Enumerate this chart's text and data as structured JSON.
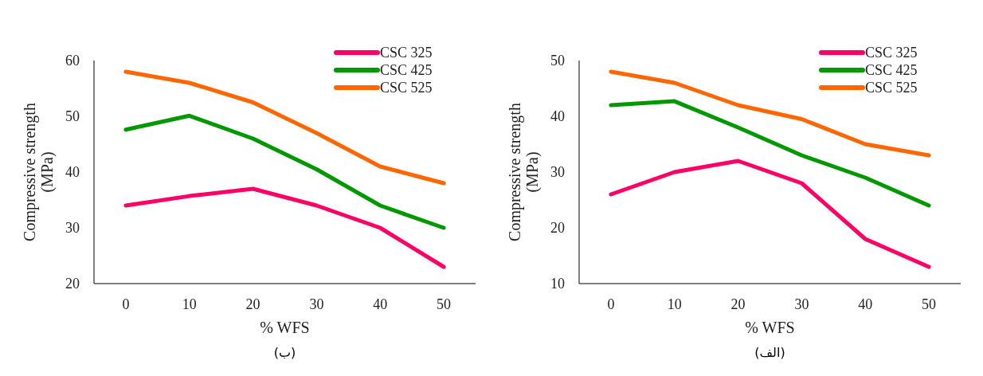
{
  "chart_data": [
    {
      "type": "line",
      "xlabel": "% WFS",
      "ylabel": "Compressive strength (MPa)",
      "categories": [
        "0",
        "10",
        "20",
        "30",
        "40",
        "50"
      ],
      "ylim": [
        20,
        60
      ],
      "yticks": [
        20,
        30,
        40,
        50,
        60
      ],
      "grid": false,
      "legend": "top right",
      "annotations": [
        "(ب)"
      ],
      "series": [
        {
          "name": "CSC 325",
          "color": "#ff0066",
          "values": [
            34,
            35.7,
            37,
            34,
            30,
            23
          ]
        },
        {
          "name": "CSC 425",
          "color": "#009900",
          "values": [
            47.6,
            50.1,
            46,
            40.5,
            34,
            30
          ]
        },
        {
          "name": "CSC 525",
          "color": "#ff6600",
          "values": [
            58,
            56,
            52.5,
            47,
            41,
            38
          ]
        }
      ]
    },
    {
      "type": "line",
      "xlabel": "% WFS",
      "ylabel": "Compressive strength (MPa)",
      "categories": [
        "0",
        "10",
        "20",
        "30",
        "40",
        "50"
      ],
      "ylim": [
        10,
        50
      ],
      "yticks": [
        10,
        20,
        30,
        40,
        50
      ],
      "grid": false,
      "legend": "top right",
      "annotations": [
        "(الف)"
      ],
      "series": [
        {
          "name": "CSC 325",
          "color": "#ff0066",
          "values": [
            26,
            30,
            32,
            28,
            18,
            13
          ]
        },
        {
          "name": "CSC 425",
          "color": "#009900",
          "values": [
            42,
            42.7,
            38,
            33,
            29,
            24
          ]
        },
        {
          "name": "CSC 525",
          "color": "#ff6600",
          "values": [
            48,
            46,
            42,
            39.5,
            35,
            33
          ]
        }
      ]
    }
  ]
}
